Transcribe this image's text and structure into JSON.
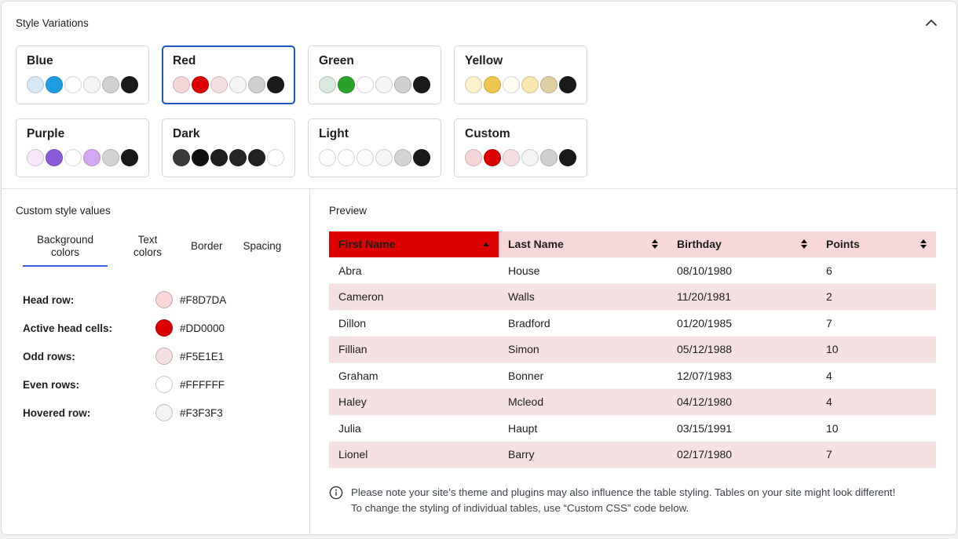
{
  "colors": {
    "accent_selected_border": "#1B57BE",
    "accent_tab_underline": "#3A62E3",
    "table_head_bg": "#F8D7DA",
    "table_head_active_bg": "#DD0000",
    "table_odd_row_bg": "#F5E1E1",
    "table_even_row_bg": "#FFFFFF"
  },
  "style_variations_panel": {
    "title": "Style Variations",
    "variations": [
      {
        "name": "Blue",
        "selected": false,
        "swatches": [
          "#D8E9F6",
          "#1F9CE3",
          "#FDFDFD",
          "#F4F4F4",
          "#D0D0D0",
          "#1A1A1A"
        ]
      },
      {
        "name": "Red",
        "selected": true,
        "swatches": [
          "#F6D5D9",
          "#DD0000",
          "#F6DFE1",
          "#F3F3F4",
          "#CFCFCF",
          "#1A1A1A"
        ]
      },
      {
        "name": "Green",
        "selected": false,
        "swatches": [
          "#D9E9DE",
          "#28A228",
          "#FDFDFD",
          "#F4F4F4",
          "#CFCFCF",
          "#1A1A1A"
        ]
      },
      {
        "name": "Yellow",
        "selected": false,
        "swatches": [
          "#FBF0CA",
          "#EDC44C",
          "#FEFBF0",
          "#F9E9AF",
          "#DECFA2",
          "#1A1A1A"
        ]
      },
      {
        "name": "Purple",
        "selected": false,
        "swatches": [
          "#F8E7FA",
          "#8A5BD9",
          "#FDFDFD",
          "#D4A7F2",
          "#D2D2D2",
          "#1A1A1A"
        ]
      },
      {
        "name": "Dark",
        "selected": false,
        "swatches": [
          "#3B3B3B",
          "#101010",
          "#1F1F1F",
          "#262626",
          "#212121",
          "#FFFFFF"
        ]
      },
      {
        "name": "Light",
        "selected": false,
        "swatches": [
          "#FCFCFC",
          "#FEFEFE",
          "#FBFBFB",
          "#F5F5F5",
          "#D4D4D4",
          "#1A1A1A"
        ]
      },
      {
        "name": "Custom",
        "selected": false,
        "swatches": [
          "#F6D5D9",
          "#DD0000",
          "#F6DFE1",
          "#F3F3F4",
          "#CFCFCF",
          "#1A1A1A"
        ]
      }
    ]
  },
  "custom_style_panel": {
    "title": "Custom style values",
    "tabs": [
      {
        "label": "Background colors",
        "active": true
      },
      {
        "label": "Text colors",
        "active": false
      },
      {
        "label": "Border",
        "active": false
      },
      {
        "label": "Spacing",
        "active": false
      }
    ],
    "fields": [
      {
        "label": "Head row:",
        "swatch": "#F8D7DA",
        "value": "#F8D7DA"
      },
      {
        "label": "Active head cells:",
        "swatch": "#DD0000",
        "value": "#DD0000"
      },
      {
        "label": "Odd rows:",
        "swatch": "#F5E1E1",
        "value": "#F5E1E1"
      },
      {
        "label": "Even rows:",
        "swatch": "#FFFFFF",
        "value": "#FFFFFF"
      },
      {
        "label": "Hovered row:",
        "swatch": "#F3F3F3",
        "value": "#F3F3F3"
      }
    ]
  },
  "preview_panel": {
    "title": "Preview",
    "table": {
      "columns": [
        {
          "label": "First Name",
          "sort": "asc",
          "active": true
        },
        {
          "label": "Last Name",
          "sort": "both",
          "active": false
        },
        {
          "label": "Birthday",
          "sort": "both",
          "active": false
        },
        {
          "label": "Points",
          "sort": "both",
          "active": false
        }
      ],
      "rows": [
        [
          "Abra",
          "House",
          "08/10/1980",
          "6"
        ],
        [
          "Cameron",
          "Walls",
          "11/20/1981",
          "2"
        ],
        [
          "Dillon",
          "Bradford",
          "01/20/1985",
          "7"
        ],
        [
          "Fillian",
          "Simon",
          "05/12/1988",
          "10"
        ],
        [
          "Graham",
          "Bonner",
          "12/07/1983",
          "4"
        ],
        [
          "Haley",
          "Mcleod",
          "04/12/1980",
          "4"
        ],
        [
          "Julia",
          "Haupt",
          "03/15/1991",
          "10"
        ],
        [
          "Lionel",
          "Barry",
          "02/17/1980",
          "7"
        ]
      ]
    },
    "note": {
      "lines": [
        "Please note your site’s theme and plugins may also influence the table styling. Tables on your site might look different!",
        "To change the styling of individual tables, use “Custom CSS” code below."
      ]
    }
  }
}
